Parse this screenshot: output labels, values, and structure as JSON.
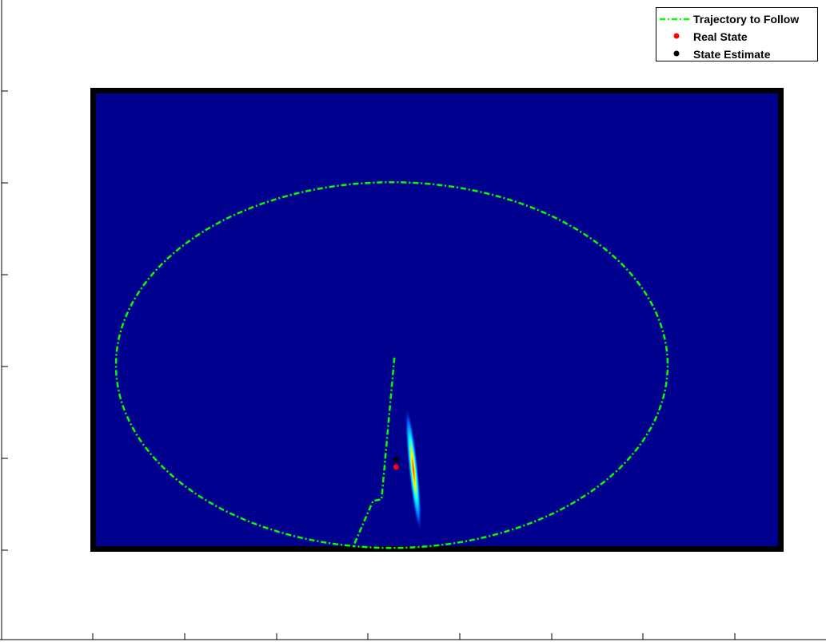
{
  "chart_data": {
    "type": "line",
    "title": "",
    "xlabel": "",
    "ylabel": "",
    "grid": false,
    "legend_placement": "top-right",
    "legend": [
      {
        "label": "Trajectory to Follow",
        "style": "dash-dot line",
        "color": "#00ff00"
      },
      {
        "label": "Real State",
        "style": "dot",
        "color": "#ff0000"
      },
      {
        "label": "State Estimate",
        "style": "dot",
        "color": "#000000"
      }
    ],
    "xlim": [
      0,
      8
    ],
    "ylim": [
      0,
      6
    ],
    "series": [
      {
        "name": "Trajectory to Follow",
        "color": "#00ff00",
        "description_points": "closed loop: center segment then ellipse",
        "x": [
          3.5,
          3.5,
          3.4,
          3.35,
          3.1,
          2.6,
          2.0,
          1.45,
          1.0,
          0.8,
          0.67,
          0.8,
          1.2,
          1.9,
          2.6,
          3.1,
          3.5,
          3.9,
          4.4,
          5.1,
          5.7,
          6.1,
          6.33,
          6.2,
          5.8,
          5.2,
          4.5,
          3.8,
          3.5
        ],
        "y": [
          2.5,
          2.5,
          1.5,
          0.6,
          0.6,
          0.7,
          0.95,
          1.35,
          1.9,
          2.2,
          2.5,
          3.0,
          3.5,
          3.9,
          4.15,
          4.25,
          4.25,
          4.25,
          4.15,
          3.9,
          3.5,
          3.0,
          2.5,
          2.0,
          1.45,
          0.95,
          0.7,
          0.6,
          0.6
        ]
      }
    ],
    "points": [
      {
        "name": "Real State",
        "x": 3.52,
        "y": 1.05,
        "color": "#ff0000"
      },
      {
        "name": "State Estimate",
        "x": 3.52,
        "y": 1.15,
        "color": "#000000"
      }
    ],
    "colormap": "jet",
    "background_color": "#00008f"
  }
}
